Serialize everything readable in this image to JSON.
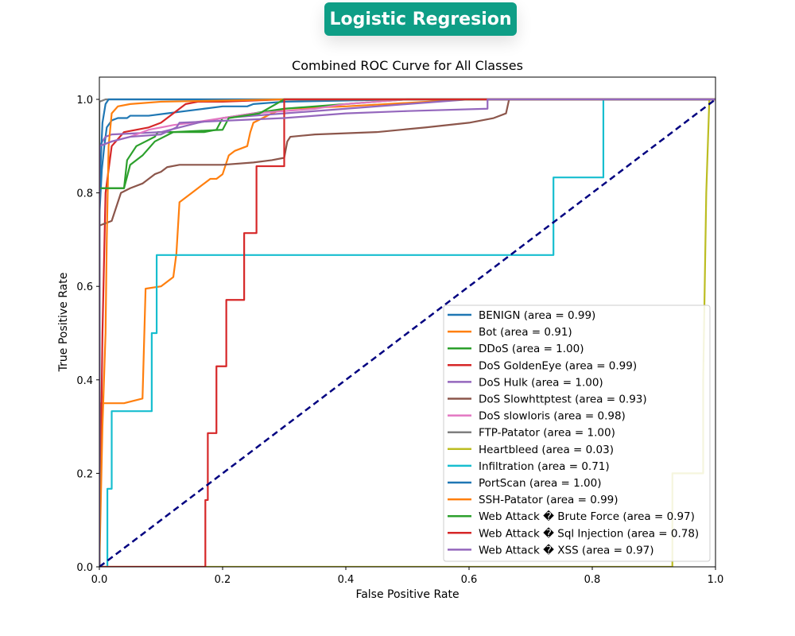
{
  "header": {
    "badge_title": "Logistic Regresion"
  },
  "chart_data": {
    "type": "line",
    "title": "Combined ROC Curve for All Classes",
    "xlabel": "False Positive Rate",
    "ylabel": "True Positive Rate",
    "xlim": [
      0.0,
      1.0
    ],
    "ylim": [
      0.0,
      1.0
    ],
    "xticks": [
      "0.0",
      "0.2",
      "0.4",
      "0.6",
      "0.8",
      "1.0"
    ],
    "yticks": [
      "0.0",
      "0.2",
      "0.4",
      "0.6",
      "0.8",
      "1.0"
    ],
    "grid": false,
    "legend_position": "lower-right",
    "diagonal": {
      "color": "#000080",
      "style": "dashed",
      "points": [
        [
          0,
          0
        ],
        [
          1,
          1
        ]
      ]
    },
    "series": [
      {
        "name": "BENIGN",
        "area": "0.99",
        "label": "BENIGN (area = 0.99)",
        "color": "#1f77b4",
        "points": [
          [
            0,
            0
          ],
          [
            0,
            0.75
          ],
          [
            0.004,
            0.85
          ],
          [
            0.008,
            0.9
          ],
          [
            0.012,
            0.94
          ],
          [
            0.02,
            0.955
          ],
          [
            0.03,
            0.96
          ],
          [
            0.045,
            0.96
          ],
          [
            0.05,
            0.965
          ],
          [
            0.08,
            0.965
          ],
          [
            0.11,
            0.97
          ],
          [
            0.14,
            0.975
          ],
          [
            0.17,
            0.98
          ],
          [
            0.2,
            0.985
          ],
          [
            0.24,
            0.985
          ],
          [
            0.25,
            0.99
          ],
          [
            0.3,
            0.995
          ],
          [
            0.5,
            1.0
          ],
          [
            1,
            1
          ]
        ]
      },
      {
        "name": "Bot",
        "area": "0.91",
        "label": "Bot (area = 0.91)",
        "color": "#ff7f0e",
        "points": [
          [
            0,
            0
          ],
          [
            0.002,
            0.35
          ],
          [
            0.04,
            0.35
          ],
          [
            0.07,
            0.36
          ],
          [
            0.075,
            0.595
          ],
          [
            0.1,
            0.6
          ],
          [
            0.12,
            0.62
          ],
          [
            0.125,
            0.67
          ],
          [
            0.13,
            0.78
          ],
          [
            0.15,
            0.8
          ],
          [
            0.17,
            0.82
          ],
          [
            0.18,
            0.83
          ],
          [
            0.19,
            0.83
          ],
          [
            0.2,
            0.84
          ],
          [
            0.21,
            0.88
          ],
          [
            0.22,
            0.89
          ],
          [
            0.24,
            0.9
          ],
          [
            0.245,
            0.93
          ],
          [
            0.25,
            0.95
          ],
          [
            0.28,
            0.97
          ],
          [
            0.3,
            0.98
          ],
          [
            0.4,
            0.985
          ],
          [
            0.6,
            1.0
          ],
          [
            1,
            1
          ]
        ]
      },
      {
        "name": "DDoS",
        "area": "1.00",
        "label": "DDoS (area = 1.00)",
        "color": "#2ca02c",
        "points": [
          [
            0,
            0
          ],
          [
            0,
            0.81
          ],
          [
            0.04,
            0.81
          ],
          [
            0.045,
            0.87
          ],
          [
            0.06,
            0.9
          ],
          [
            0.075,
            0.91
          ],
          [
            0.09,
            0.92
          ],
          [
            0.095,
            0.93
          ],
          [
            0.15,
            0.93
          ],
          [
            0.17,
            0.93
          ],
          [
            0.19,
            0.935
          ],
          [
            0.2,
            0.96
          ],
          [
            0.25,
            0.97
          ],
          [
            0.3,
            0.98
          ],
          [
            0.4,
            0.99
          ],
          [
            0.5,
            1.0
          ],
          [
            1,
            1
          ]
        ]
      },
      {
        "name": "DoS GoldenEye",
        "area": "0.99",
        "label": "DoS GoldenEye (area = 0.99)",
        "color": "#d62728",
        "points": [
          [
            0,
            0
          ],
          [
            0.005,
            0.5
          ],
          [
            0.01,
            0.8
          ],
          [
            0.02,
            0.9
          ],
          [
            0.04,
            0.93
          ],
          [
            0.08,
            0.94
          ],
          [
            0.1,
            0.95
          ],
          [
            0.12,
            0.97
          ],
          [
            0.13,
            0.98
          ],
          [
            0.14,
            0.99
          ],
          [
            0.16,
            0.995
          ],
          [
            0.2,
            0.995
          ],
          [
            0.3,
            1.0
          ],
          [
            1,
            1
          ]
        ]
      },
      {
        "name": "DoS Hulk",
        "area": "1.00",
        "label": "DoS Hulk (area = 1.00)",
        "color": "#9467bd",
        "points": [
          [
            0,
            0
          ],
          [
            0,
            0.9
          ],
          [
            0.01,
            0.92
          ],
          [
            0.02,
            0.925
          ],
          [
            0.1,
            0.93
          ],
          [
            0.13,
            0.94
          ],
          [
            0.16,
            0.95
          ],
          [
            0.2,
            0.96
          ],
          [
            0.3,
            0.97
          ],
          [
            0.4,
            0.98
          ],
          [
            0.5,
            0.99
          ],
          [
            0.6,
            1.0
          ],
          [
            1,
            1
          ]
        ]
      },
      {
        "name": "DoS Slowhttptest",
        "area": "0.93",
        "label": "DoS Slowhttptest (area = 0.93)",
        "color": "#8c564b",
        "points": [
          [
            0,
            0
          ],
          [
            0,
            0.73
          ],
          [
            0.01,
            0.735
          ],
          [
            0.02,
            0.74
          ],
          [
            0.025,
            0.76
          ],
          [
            0.03,
            0.78
          ],
          [
            0.035,
            0.8
          ],
          [
            0.05,
            0.81
          ],
          [
            0.07,
            0.82
          ],
          [
            0.09,
            0.84
          ],
          [
            0.1,
            0.845
          ],
          [
            0.11,
            0.855
          ],
          [
            0.13,
            0.86
          ],
          [
            0.2,
            0.86
          ],
          [
            0.25,
            0.865
          ],
          [
            0.28,
            0.87
          ],
          [
            0.3,
            0.875
          ],
          [
            0.305,
            0.91
          ],
          [
            0.31,
            0.92
          ],
          [
            0.35,
            0.925
          ],
          [
            0.45,
            0.93
          ],
          [
            0.53,
            0.94
          ],
          [
            0.6,
            0.95
          ],
          [
            0.64,
            0.96
          ],
          [
            0.66,
            0.97
          ],
          [
            0.665,
            1.0
          ],
          [
            1,
            1
          ]
        ]
      },
      {
        "name": "DoS slowloris",
        "area": "0.98",
        "label": "DoS slowloris (area = 0.98)",
        "color": "#e377c2",
        "points": [
          [
            0,
            0
          ],
          [
            0,
            0.9
          ],
          [
            0.02,
            0.91
          ],
          [
            0.05,
            0.92
          ],
          [
            0.08,
            0.935
          ],
          [
            0.1,
            0.94
          ],
          [
            0.12,
            0.945
          ],
          [
            0.15,
            0.95
          ],
          [
            0.2,
            0.96
          ],
          [
            0.25,
            0.97
          ],
          [
            0.3,
            0.975
          ],
          [
            0.35,
            0.98
          ],
          [
            0.4,
            0.99
          ],
          [
            0.5,
            1.0
          ],
          [
            1,
            1
          ]
        ]
      },
      {
        "name": "FTP-Patator",
        "area": "1.00",
        "label": "FTP-Patator (area = 1.00)",
        "color": "#7f7f7f",
        "points": [
          [
            0,
            0
          ],
          [
            0,
            0.995
          ],
          [
            0.01,
            1.0
          ],
          [
            1,
            1
          ]
        ]
      },
      {
        "name": "Heartbleed",
        "area": "0.03",
        "label": "Heartbleed (area = 0.03)",
        "color": "#bcbd22",
        "points": [
          [
            0,
            0
          ],
          [
            0.93,
            0
          ],
          [
            0.93,
            0.2
          ],
          [
            0.98,
            0.2
          ],
          [
            0.98,
            0.4
          ],
          [
            0.985,
            0.8
          ],
          [
            0.99,
            1.0
          ],
          [
            1,
            1
          ]
        ]
      },
      {
        "name": "Infiltration",
        "area": "0.71",
        "label": "Infiltration (area = 0.71)",
        "color": "#17becf",
        "points": [
          [
            0,
            0
          ],
          [
            0.013,
            0
          ],
          [
            0.013,
            0.167
          ],
          [
            0.02,
            0.167
          ],
          [
            0.02,
            0.333
          ],
          [
            0.085,
            0.333
          ],
          [
            0.085,
            0.5
          ],
          [
            0.093,
            0.5
          ],
          [
            0.093,
            0.667
          ],
          [
            0.737,
            0.667
          ],
          [
            0.737,
            0.833
          ],
          [
            0.818,
            0.833
          ],
          [
            0.818,
            1.0
          ],
          [
            1,
            1
          ]
        ]
      },
      {
        "name": "PortScan",
        "area": "1.00",
        "label": "PortScan (area = 1.00)",
        "color": "#1f77b4",
        "points": [
          [
            0,
            0
          ],
          [
            0,
            0.8
          ],
          [
            0.005,
            0.95
          ],
          [
            0.01,
            0.99
          ],
          [
            0.015,
            1.0
          ],
          [
            1,
            1
          ]
        ]
      },
      {
        "name": "SSH-Patator",
        "area": "0.99",
        "label": "SSH-Patator (area = 0.99)",
        "color": "#ff7f0e",
        "points": [
          [
            0,
            0
          ],
          [
            0.005,
            0.3
          ],
          [
            0.01,
            0.5
          ],
          [
            0.012,
            0.7
          ],
          [
            0.015,
            0.9
          ],
          [
            0.02,
            0.97
          ],
          [
            0.03,
            0.985
          ],
          [
            0.05,
            0.99
          ],
          [
            0.1,
            0.995
          ],
          [
            0.3,
            1.0
          ],
          [
            1,
            1
          ]
        ]
      },
      {
        "name": "Web Attack � Brute Force",
        "area": "0.97",
        "label": "Web Attack � Brute Force (area = 0.97)",
        "color": "#2ca02c",
        "points": [
          [
            0,
            0
          ],
          [
            0,
            0.81
          ],
          [
            0.04,
            0.81
          ],
          [
            0.05,
            0.86
          ],
          [
            0.07,
            0.88
          ],
          [
            0.09,
            0.91
          ],
          [
            0.12,
            0.93
          ],
          [
            0.2,
            0.935
          ],
          [
            0.21,
            0.96
          ],
          [
            0.26,
            0.97
          ],
          [
            0.3,
            1.0
          ],
          [
            1,
            1
          ]
        ]
      },
      {
        "name": "Web Attack � Sql Injection",
        "area": "0.78",
        "label": "Web Attack � Sql Injection (area = 0.78)",
        "color": "#d62728",
        "points": [
          [
            0,
            0
          ],
          [
            0.172,
            0
          ],
          [
            0.172,
            0.143
          ],
          [
            0.176,
            0.143
          ],
          [
            0.176,
            0.286
          ],
          [
            0.19,
            0.286
          ],
          [
            0.19,
            0.429
          ],
          [
            0.206,
            0.429
          ],
          [
            0.206,
            0.571
          ],
          [
            0.235,
            0.571
          ],
          [
            0.235,
            0.714
          ],
          [
            0.255,
            0.714
          ],
          [
            0.255,
            0.857
          ],
          [
            0.3,
            0.857
          ],
          [
            0.3,
            1.0
          ],
          [
            1,
            1
          ]
        ]
      },
      {
        "name": "Web Attack � XSS",
        "area": "0.97",
        "label": "Web Attack � XSS (area = 0.97)",
        "color": "#9467bd",
        "points": [
          [
            0,
            0
          ],
          [
            0,
            0.9
          ],
          [
            0.02,
            0.91
          ],
          [
            0.05,
            0.92
          ],
          [
            0.1,
            0.925
          ],
          [
            0.125,
            0.94
          ],
          [
            0.13,
            0.95
          ],
          [
            0.3,
            0.96
          ],
          [
            0.4,
            0.97
          ],
          [
            0.5,
            0.975
          ],
          [
            0.63,
            0.98
          ],
          [
            0.63,
            1.0
          ],
          [
            1,
            1
          ]
        ]
      }
    ]
  }
}
